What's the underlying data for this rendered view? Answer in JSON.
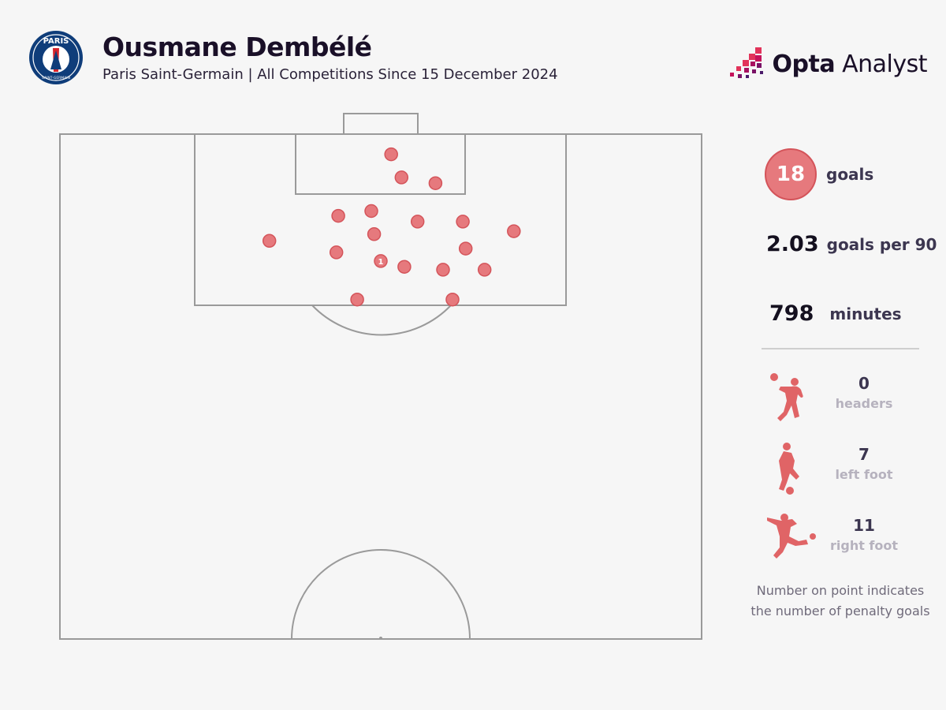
{
  "header": {
    "player_name": "Ousmane Dembélé",
    "subtitle": "Paris Saint-Germain | All Competitions Since 15 December 2024",
    "crest_text": "PARIS",
    "crest_subtext": "SAINT-GERMAIN",
    "crest_icon": "psg-crest-icon"
  },
  "brand": {
    "name_bold": "Opta",
    "name_rest": " Analyst",
    "icon": "opta-mark-icon"
  },
  "stats": {
    "goals_value": "18",
    "goals_label": "goals",
    "per90_value": "2.03",
    "per90_label": "goals per 90",
    "minutes_value": "798",
    "minutes_label": "minutes"
  },
  "shot_types": [
    {
      "count": "0",
      "label": "headers",
      "icon": "header-player-icon"
    },
    {
      "count": "7",
      "label": "left foot",
      "icon": "left-foot-player-icon"
    },
    {
      "count": "11",
      "label": "right foot",
      "icon": "right-foot-player-icon"
    }
  ],
  "note": "Number on point indicates the number of penalty goals",
  "colors": {
    "accent": "#e6797d",
    "accent_stroke": "#d4545a",
    "title": "#1a1028",
    "pitch_line": "#9a9a9a",
    "background": "#f6f6f6"
  },
  "chart_data": {
    "type": "scatter",
    "description_units": "pitch coordinates in metres; x across pitch width (0-68), y distance from goal line (0-52.5)",
    "x_range": [
      0,
      68
    ],
    "y_range": [
      0,
      52.5
    ],
    "points": [
      {
        "x": 35.1,
        "y": 2.1,
        "penalties": 0
      },
      {
        "x": 36.2,
        "y": 4.5,
        "penalties": 0
      },
      {
        "x": 39.8,
        "y": 5.1,
        "penalties": 0
      },
      {
        "x": 29.5,
        "y": 8.5,
        "penalties": 0
      },
      {
        "x": 33.0,
        "y": 8.0,
        "penalties": 0
      },
      {
        "x": 37.9,
        "y": 9.1,
        "penalties": 0
      },
      {
        "x": 42.7,
        "y": 9.1,
        "penalties": 0
      },
      {
        "x": 48.1,
        "y": 10.1,
        "penalties": 0
      },
      {
        "x": 22.2,
        "y": 11.1,
        "penalties": 0
      },
      {
        "x": 33.3,
        "y": 10.4,
        "penalties": 0
      },
      {
        "x": 29.3,
        "y": 12.3,
        "penalties": 0
      },
      {
        "x": 43.0,
        "y": 11.9,
        "penalties": 0
      },
      {
        "x": 34.0,
        "y": 13.2,
        "penalties": 1
      },
      {
        "x": 36.5,
        "y": 13.8,
        "penalties": 0
      },
      {
        "x": 40.6,
        "y": 14.1,
        "penalties": 0
      },
      {
        "x": 45.0,
        "y": 14.1,
        "penalties": 0
      },
      {
        "x": 31.5,
        "y": 17.2,
        "penalties": 0
      },
      {
        "x": 41.6,
        "y": 17.2,
        "penalties": 0
      }
    ]
  }
}
